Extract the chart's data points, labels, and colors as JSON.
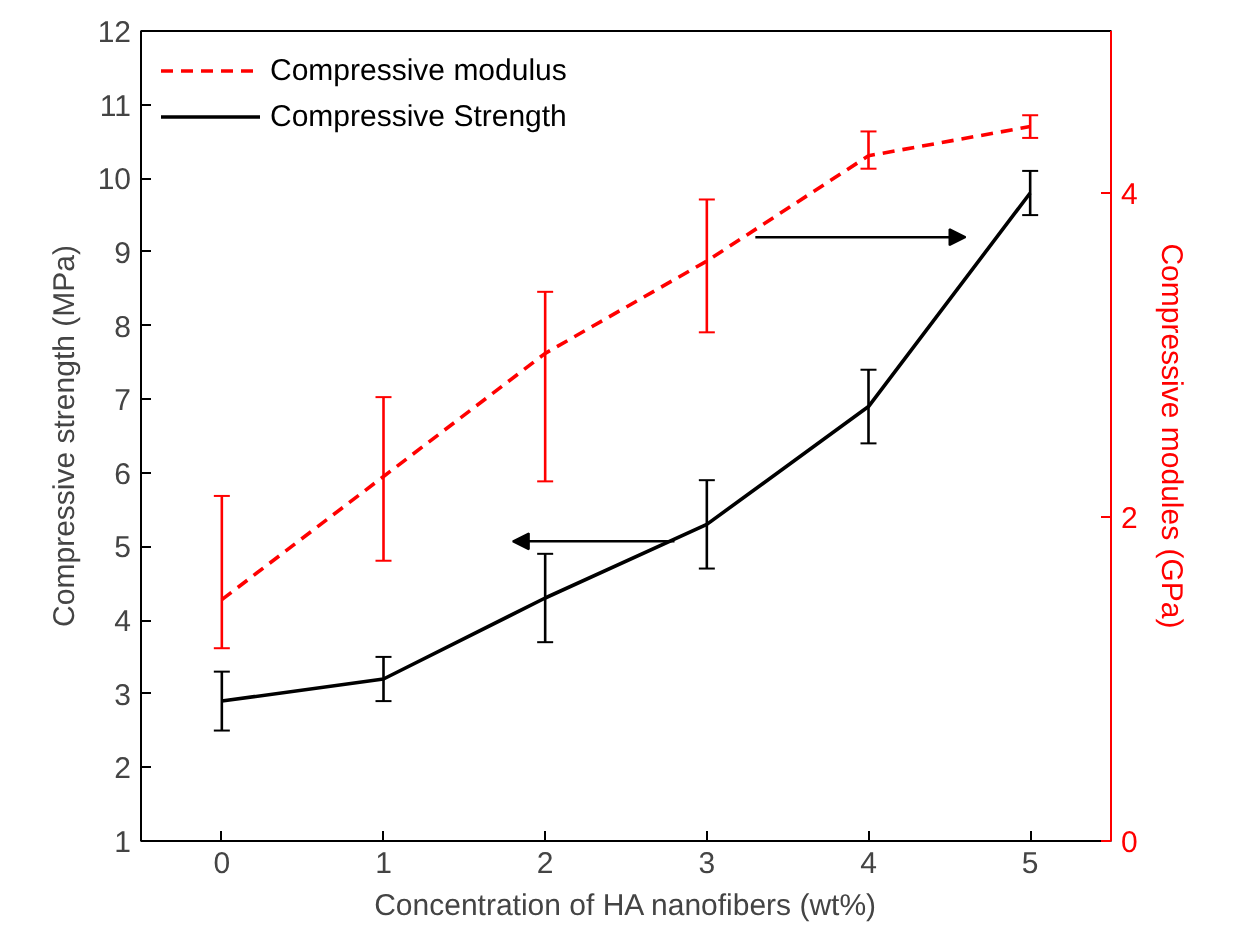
{
  "chart_data": {
    "type": "line",
    "xlabel": "Concentration of HA nanofibers (wt%)",
    "ylabel": "Compressive strength (MPa)",
    "y2label": "Compressive modules (GPa)",
    "x": [
      0,
      1,
      2,
      3,
      4,
      5
    ],
    "xlim": [
      -0.5,
      5.5
    ],
    "xticks": [
      0,
      1,
      2,
      3,
      4,
      5
    ],
    "ylim": [
      1,
      12
    ],
    "yticks": [
      1,
      2,
      3,
      4,
      5,
      6,
      7,
      8,
      9,
      10,
      11,
      12
    ],
    "y2lim": [
      0,
      5
    ],
    "y2ticks": [
      0,
      2,
      4
    ],
    "series": [
      {
        "name": "Compressive modulus",
        "color": "#ff0000",
        "axis": "y2",
        "line_style": "dashed",
        "values": [
          1.49,
          2.25,
          3.01,
          3.58,
          4.23,
          4.41
        ],
        "errors": [
          [
            1.19,
            2.13
          ],
          [
            1.73,
            2.74
          ],
          [
            2.22,
            3.39
          ],
          [
            3.14,
            3.96
          ],
          [
            4.15,
            4.38
          ],
          [
            4.34,
            4.48
          ]
        ]
      },
      {
        "name": "Compressive Strength",
        "color": "#000000",
        "line_style": "solid",
        "values": [
          2.9,
          3.2,
          4.3,
          5.3,
          6.9,
          9.8
        ],
        "errors": [
          [
            2.5,
            3.3
          ],
          [
            2.9,
            3.5
          ],
          [
            3.7,
            4.9
          ],
          [
            4.7,
            5.9
          ],
          [
            6.4,
            7.4
          ],
          [
            9.5,
            10.1
          ]
        ]
      }
    ],
    "legend": "top left",
    "grid": false,
    "marker": "none"
  }
}
